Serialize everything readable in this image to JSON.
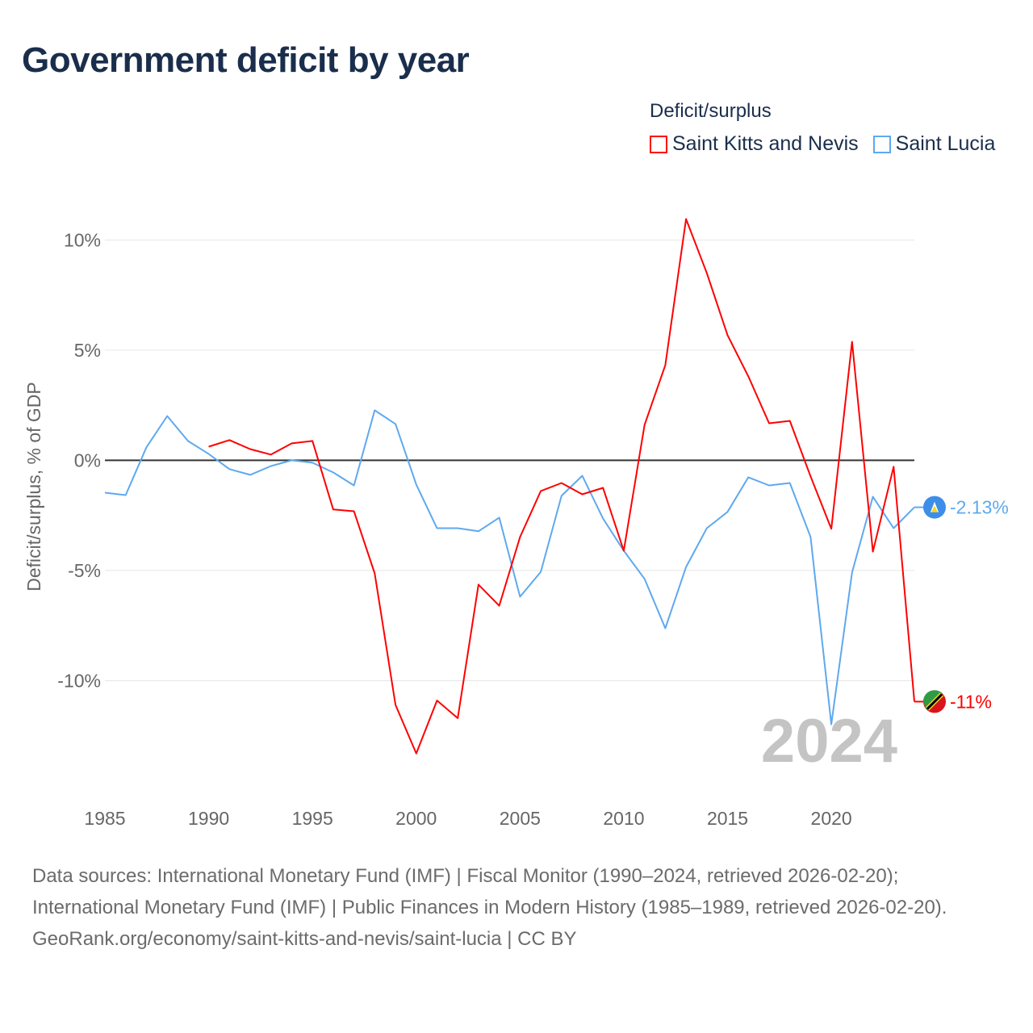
{
  "chart_data": {
    "type": "line",
    "title": "Government deficit by year",
    "ylabel": "Deficit/surplus, % of GDP",
    "xlabel": "",
    "xlim": [
      1985,
      2024
    ],
    "ylim": [
      -15,
      12.1
    ],
    "x_ticks": [
      1985,
      1990,
      1995,
      2000,
      2005,
      2010,
      2015,
      2020
    ],
    "y_ticks": [
      10,
      5,
      0,
      -5,
      -10
    ],
    "y_tick_labels": [
      "10%",
      "5%",
      "0%",
      "-5%",
      "-10%"
    ],
    "grid": true,
    "legend_title": "Deficit/surplus",
    "legend_position": "top-right",
    "year_watermark": "2024",
    "series": [
      {
        "name": "Saint Kitts and Nevis",
        "color": "#ff0000",
        "end_label": "-11%",
        "x": [
          1990,
          1991,
          1992,
          1993,
          1994,
          1995,
          1996,
          1997,
          1998,
          1999,
          2000,
          2001,
          2002,
          2003,
          2004,
          2005,
          2006,
          2007,
          2008,
          2009,
          2010,
          2011,
          2012,
          2013,
          2014,
          2015,
          2016,
          2017,
          2018,
          2019,
          2020,
          2021,
          2022,
          2023,
          2024
        ],
        "values": [
          0.62,
          0.92,
          0.51,
          0.26,
          0.77,
          0.88,
          -2.23,
          -2.31,
          -5.13,
          -11.1,
          -13.3,
          -10.9,
          -11.7,
          -5.64,
          -6.6,
          -3.48,
          -1.39,
          -1.03,
          -1.54,
          -1.25,
          -4.1,
          1.61,
          4.32,
          10.95,
          8.5,
          5.68,
          3.81,
          1.68,
          1.79,
          -0.73,
          -3.11,
          5.38,
          -4.14,
          -0.29,
          -10.95
        ]
      },
      {
        "name": "Saint Lucia",
        "color": "#5ea9ee",
        "end_label": "-2.13%",
        "x": [
          1985,
          1986,
          1987,
          1988,
          1989,
          1990,
          1991,
          1992,
          1993,
          1994,
          1995,
          1996,
          1997,
          1998,
          1999,
          2000,
          2001,
          2002,
          2003,
          2004,
          2005,
          2006,
          2007,
          2008,
          2009,
          2010,
          2011,
          2012,
          2013,
          2014,
          2015,
          2016,
          2017,
          2018,
          2019,
          2020,
          2021,
          2022,
          2023,
          2024
        ],
        "values": [
          -1.47,
          -1.58,
          0.59,
          2.01,
          0.88,
          0.29,
          -0.4,
          -0.66,
          -0.26,
          0,
          -0.11,
          -0.55,
          -1.14,
          2.27,
          1.65,
          -1.1,
          -3.08,
          -3.08,
          -3.22,
          -2.6,
          -6.19,
          -5.06,
          -1.61,
          -0.7,
          -2.64,
          -4.1,
          -5.38,
          -7.62,
          -4.84,
          -3.08,
          -2.34,
          -0.77,
          -1.14,
          -1.03,
          -3.48,
          -11.98,
          -5.09,
          -1.65,
          -3.08,
          -2.13
        ]
      }
    ]
  },
  "footer": {
    "sources": "Data sources: International Monetary Fund (IMF) | Fiscal Monitor (1990–2024, retrieved 2026-02-20); International Monetary Fund (IMF) | Public Finances in Modern History (1985–1989, retrieved 2026-02-20).",
    "link": "GeoRank.org/economy/saint-kitts-and-nevis/saint-lucia | CC BY"
  }
}
